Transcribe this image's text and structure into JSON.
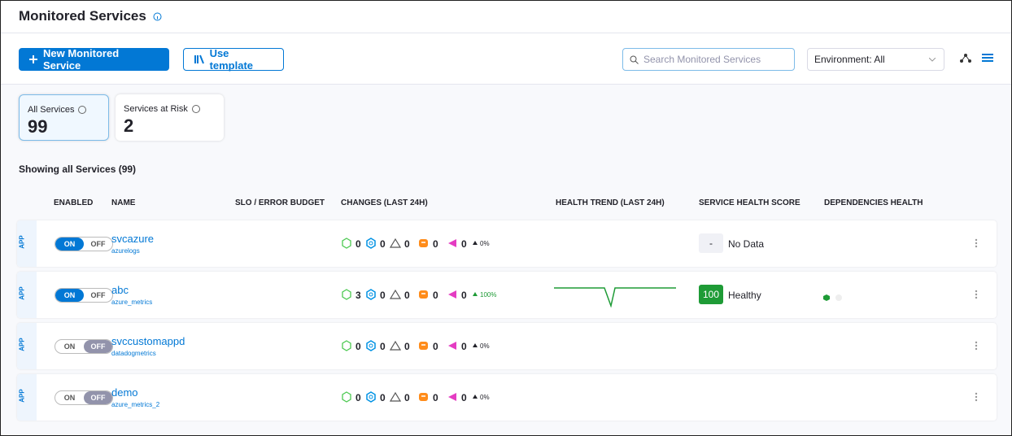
{
  "header": {
    "title": "Monitored Services"
  },
  "toolbar": {
    "new_button": "New Monitored Service",
    "template_button": "Use template",
    "search_placeholder": "Search Monitored Services",
    "environment": "Environment: All"
  },
  "summary": [
    {
      "label": "All Services",
      "count": 99,
      "selected": true
    },
    {
      "label": "Services at Risk",
      "count": 2,
      "selected": false
    }
  ],
  "showing": "Showing all Services (99)",
  "table": {
    "columns": [
      "ENABLED",
      "NAME",
      "SLO / ERROR BUDGET",
      "CHANGES (LAST 24H)",
      "HEALTH TREND (LAST 24H)",
      "SERVICE HEALTH SCORE",
      "DEPENDENCIES HEALTH"
    ],
    "toggle": {
      "on": "ON",
      "off": "OFF"
    },
    "rows": [
      {
        "type": "APP",
        "enabled": true,
        "name": "svcazure",
        "source": "azurelogs",
        "changes": [
          0,
          0,
          0,
          0,
          0
        ],
        "change_percent": "0%",
        "trend_up": false,
        "health": {
          "score": "-",
          "status": "No Data"
        }
      },
      {
        "type": "APP",
        "enabled": true,
        "name": "abc",
        "source": "azure_metrics",
        "changes": [
          3,
          0,
          0,
          0,
          0
        ],
        "change_percent": "100%",
        "trend_up": true,
        "health": {
          "score": 100,
          "status": "Healthy"
        }
      },
      {
        "type": "APP",
        "enabled": false,
        "name": "svccustomappd",
        "source": "datadogmetrics",
        "changes": [
          0,
          0,
          0,
          0,
          0
        ],
        "change_percent": "0%",
        "trend_up": false,
        "health": null
      },
      {
        "type": "APP",
        "enabled": false,
        "name": "demo",
        "source": "azure_metrics_2",
        "changes": [
          0,
          0,
          0,
          0,
          0
        ],
        "change_percent": "0%",
        "trend_up": false,
        "health": null
      }
    ]
  }
}
